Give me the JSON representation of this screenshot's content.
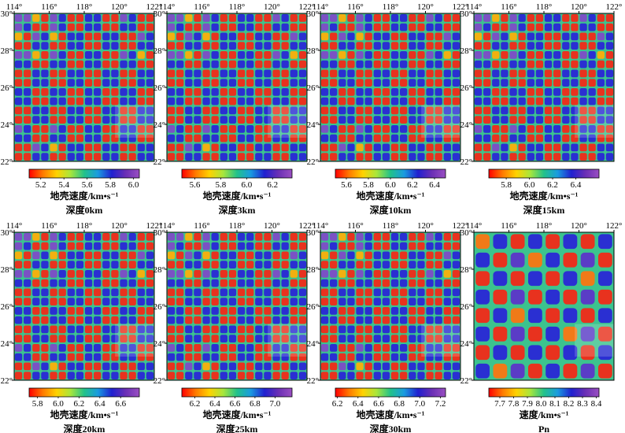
{
  "chart_data": [
    {
      "type": "heatmap",
      "panel": "0km",
      "lon_range": [
        114,
        122
      ],
      "lat_range": [
        22,
        30
      ],
      "x_ticks": [
        "114°",
        "116°",
        "118°",
        "120°",
        "122°"
      ],
      "y_ticks": [
        "30°",
        "28°",
        "26°",
        "24°",
        "22°"
      ],
      "checker_cells": 16,
      "colorbar_range": [
        5.1,
        6.05
      ],
      "colorbar_ticks": [
        "5.2",
        "5.4",
        "5.6",
        "5.8",
        "6.0"
      ],
      "quantity_label": "地壳速度/km•s⁻¹",
      "depth_label": "深度0km"
    },
    {
      "type": "heatmap",
      "panel": "3km",
      "lon_range": [
        114,
        122
      ],
      "lat_range": [
        22,
        30
      ],
      "x_ticks": [
        "114°",
        "116°",
        "118°",
        "120°",
        "122°"
      ],
      "y_ticks": [
        "30°",
        "28°",
        "26°",
        "24°",
        "22°"
      ],
      "checker_cells": 16,
      "colorbar_range": [
        5.5,
        6.35
      ],
      "colorbar_ticks": [
        "5.6",
        "5.8",
        "6.0",
        "6.2"
      ],
      "quantity_label": "地壳速度/km•s⁻¹",
      "depth_label": "深度3km"
    },
    {
      "type": "heatmap",
      "panel": "10km",
      "lon_range": [
        114,
        122
      ],
      "lat_range": [
        22,
        30
      ],
      "x_ticks": [
        "114°",
        "116°",
        "118°",
        "120°",
        "122°"
      ],
      "y_ticks": [
        "30°",
        "28°",
        "26°",
        "24°",
        "22°"
      ],
      "checker_cells": 16,
      "colorbar_range": [
        5.5,
        6.5
      ],
      "colorbar_ticks": [
        "5.6",
        "5.8",
        "6.0",
        "6.2",
        "6.4"
      ],
      "quantity_label": "地壳速度/km•s⁻¹",
      "depth_label": "深度10km"
    },
    {
      "type": "heatmap",
      "panel": "15km",
      "lon_range": [
        114,
        122
      ],
      "lat_range": [
        22,
        30
      ],
      "x_ticks": [
        "114°",
        "116°",
        "118°",
        "120°",
        "122°"
      ],
      "y_ticks": [
        "30°",
        "28°",
        "26°",
        "24°",
        "22°"
      ],
      "checker_cells": 16,
      "colorbar_range": [
        5.65,
        6.6
      ],
      "colorbar_ticks": [
        "5.8",
        "6.0",
        "6.2",
        "6.4"
      ],
      "quantity_label": "地壳速度/km•s⁻¹",
      "depth_label": "深度15km"
    },
    {
      "type": "heatmap",
      "panel": "20km",
      "lon_range": [
        114,
        122
      ],
      "lat_range": [
        22,
        30
      ],
      "x_ticks": [
        "114°",
        "116°",
        "118°",
        "120°",
        "122°"
      ],
      "y_ticks": [
        "30°",
        "28°",
        "26°",
        "24°",
        "22°"
      ],
      "checker_cells": 16,
      "colorbar_range": [
        5.72,
        6.78
      ],
      "colorbar_ticks": [
        "5.8",
        "6.0",
        "6.2",
        "6.4",
        "6.6"
      ],
      "quantity_label": "地壳速度/km•s⁻¹",
      "depth_label": "深度20km"
    },
    {
      "type": "heatmap",
      "panel": "25km",
      "lon_range": [
        114,
        122
      ],
      "lat_range": [
        22,
        30
      ],
      "x_ticks": [
        "114°",
        "116°",
        "118°",
        "120°",
        "122°"
      ],
      "y_ticks": [
        "30°",
        "28°",
        "26°",
        "24°",
        "22°"
      ],
      "checker_cells": 16,
      "colorbar_range": [
        6.07,
        7.17
      ],
      "colorbar_ticks": [
        "6.2",
        "6.4",
        "6.6",
        "6.8",
        "7.0"
      ],
      "quantity_label": "地壳速度/km•s⁻¹",
      "depth_label": "深度25km"
    },
    {
      "type": "heatmap",
      "panel": "30km",
      "lon_range": [
        114,
        122
      ],
      "lat_range": [
        22,
        30
      ],
      "x_ticks": [
        "114°",
        "116°",
        "118°",
        "120°",
        "122°"
      ],
      "y_ticks": [
        "30°",
        "28°",
        "26°",
        "24°",
        "22°"
      ],
      "checker_cells": 16,
      "colorbar_range": [
        6.18,
        7.25
      ],
      "colorbar_ticks": [
        "6.2",
        "6.4",
        "6.6",
        "6.8",
        "7.0",
        "7.2"
      ],
      "quantity_label": "地壳速度/km•s⁻¹",
      "depth_label": "深度30km"
    },
    {
      "type": "heatmap",
      "panel": "Pn",
      "lon_range": [
        114,
        122
      ],
      "lat_range": [
        22,
        30
      ],
      "x_ticks": [
        "114°",
        "116°",
        "118°",
        "120°",
        "122°"
      ],
      "y_ticks": [
        "30°",
        "28°",
        "26°",
        "24°",
        "22°"
      ],
      "checker_cells": 8,
      "colorbar_range": [
        7.62,
        8.42
      ],
      "colorbar_ticks": [
        "7.7",
        "7.8",
        "7.9",
        "8.0",
        "8.1",
        "8.2",
        "8.3",
        "8.4"
      ],
      "quantity_label": "速度/km•s⁻¹",
      "depth_label": "Pn"
    }
  ],
  "colorscale": [
    "#ff0000",
    "#ff7a00",
    "#ffd200",
    "#a8e63c",
    "#22c28a",
    "#1a9be0",
    "#2020d0",
    "#6a2fb5",
    "#9a4fc2"
  ]
}
